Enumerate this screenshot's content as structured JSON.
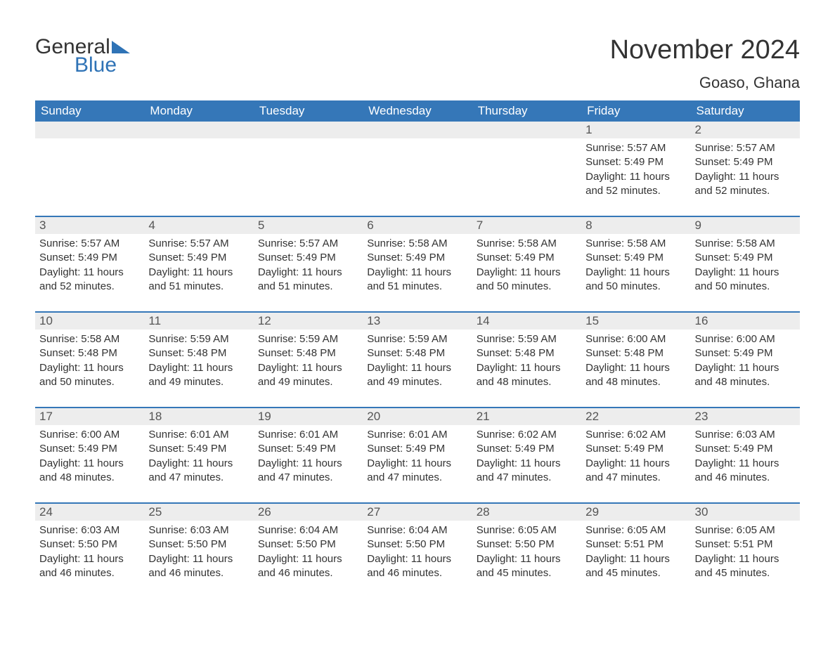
{
  "logo": {
    "text1": "General",
    "text2": "Blue",
    "accent_color": "#2f73b6"
  },
  "title": "November 2024",
  "location": "Goaso, Ghana",
  "colors": {
    "header_bg": "#3577b8",
    "header_text": "#ffffff",
    "row_border": "#3577b8",
    "daynum_bg": "#ededed",
    "body_text": "#333333"
  },
  "day_headers": [
    "Sunday",
    "Monday",
    "Tuesday",
    "Wednesday",
    "Thursday",
    "Friday",
    "Saturday"
  ],
  "weeks": [
    [
      null,
      null,
      null,
      null,
      null,
      {
        "num": "1",
        "sunrise": "5:57 AM",
        "sunset": "5:49 PM",
        "daylight": "11 hours and 52 minutes."
      },
      {
        "num": "2",
        "sunrise": "5:57 AM",
        "sunset": "5:49 PM",
        "daylight": "11 hours and 52 minutes."
      }
    ],
    [
      {
        "num": "3",
        "sunrise": "5:57 AM",
        "sunset": "5:49 PM",
        "daylight": "11 hours and 52 minutes."
      },
      {
        "num": "4",
        "sunrise": "5:57 AM",
        "sunset": "5:49 PM",
        "daylight": "11 hours and 51 minutes."
      },
      {
        "num": "5",
        "sunrise": "5:57 AM",
        "sunset": "5:49 PM",
        "daylight": "11 hours and 51 minutes."
      },
      {
        "num": "6",
        "sunrise": "5:58 AM",
        "sunset": "5:49 PM",
        "daylight": "11 hours and 51 minutes."
      },
      {
        "num": "7",
        "sunrise": "5:58 AM",
        "sunset": "5:49 PM",
        "daylight": "11 hours and 50 minutes."
      },
      {
        "num": "8",
        "sunrise": "5:58 AM",
        "sunset": "5:49 PM",
        "daylight": "11 hours and 50 minutes."
      },
      {
        "num": "9",
        "sunrise": "5:58 AM",
        "sunset": "5:49 PM",
        "daylight": "11 hours and 50 minutes."
      }
    ],
    [
      {
        "num": "10",
        "sunrise": "5:58 AM",
        "sunset": "5:48 PM",
        "daylight": "11 hours and 50 minutes."
      },
      {
        "num": "11",
        "sunrise": "5:59 AM",
        "sunset": "5:48 PM",
        "daylight": "11 hours and 49 minutes."
      },
      {
        "num": "12",
        "sunrise": "5:59 AM",
        "sunset": "5:48 PM",
        "daylight": "11 hours and 49 minutes."
      },
      {
        "num": "13",
        "sunrise": "5:59 AM",
        "sunset": "5:48 PM",
        "daylight": "11 hours and 49 minutes."
      },
      {
        "num": "14",
        "sunrise": "5:59 AM",
        "sunset": "5:48 PM",
        "daylight": "11 hours and 48 minutes."
      },
      {
        "num": "15",
        "sunrise": "6:00 AM",
        "sunset": "5:48 PM",
        "daylight": "11 hours and 48 minutes."
      },
      {
        "num": "16",
        "sunrise": "6:00 AM",
        "sunset": "5:49 PM",
        "daylight": "11 hours and 48 minutes."
      }
    ],
    [
      {
        "num": "17",
        "sunrise": "6:00 AM",
        "sunset": "5:49 PM",
        "daylight": "11 hours and 48 minutes."
      },
      {
        "num": "18",
        "sunrise": "6:01 AM",
        "sunset": "5:49 PM",
        "daylight": "11 hours and 47 minutes."
      },
      {
        "num": "19",
        "sunrise": "6:01 AM",
        "sunset": "5:49 PM",
        "daylight": "11 hours and 47 minutes."
      },
      {
        "num": "20",
        "sunrise": "6:01 AM",
        "sunset": "5:49 PM",
        "daylight": "11 hours and 47 minutes."
      },
      {
        "num": "21",
        "sunrise": "6:02 AM",
        "sunset": "5:49 PM",
        "daylight": "11 hours and 47 minutes."
      },
      {
        "num": "22",
        "sunrise": "6:02 AM",
        "sunset": "5:49 PM",
        "daylight": "11 hours and 47 minutes."
      },
      {
        "num": "23",
        "sunrise": "6:03 AM",
        "sunset": "5:49 PM",
        "daylight": "11 hours and 46 minutes."
      }
    ],
    [
      {
        "num": "24",
        "sunrise": "6:03 AM",
        "sunset": "5:50 PM",
        "daylight": "11 hours and 46 minutes."
      },
      {
        "num": "25",
        "sunrise": "6:03 AM",
        "sunset": "5:50 PM",
        "daylight": "11 hours and 46 minutes."
      },
      {
        "num": "26",
        "sunrise": "6:04 AM",
        "sunset": "5:50 PM",
        "daylight": "11 hours and 46 minutes."
      },
      {
        "num": "27",
        "sunrise": "6:04 AM",
        "sunset": "5:50 PM",
        "daylight": "11 hours and 46 minutes."
      },
      {
        "num": "28",
        "sunrise": "6:05 AM",
        "sunset": "5:50 PM",
        "daylight": "11 hours and 45 minutes."
      },
      {
        "num": "29",
        "sunrise": "6:05 AM",
        "sunset": "5:51 PM",
        "daylight": "11 hours and 45 minutes."
      },
      {
        "num": "30",
        "sunrise": "6:05 AM",
        "sunset": "5:51 PM",
        "daylight": "11 hours and 45 minutes."
      }
    ]
  ],
  "labels": {
    "sunrise": "Sunrise:",
    "sunset": "Sunset:",
    "daylight": "Daylight:"
  }
}
